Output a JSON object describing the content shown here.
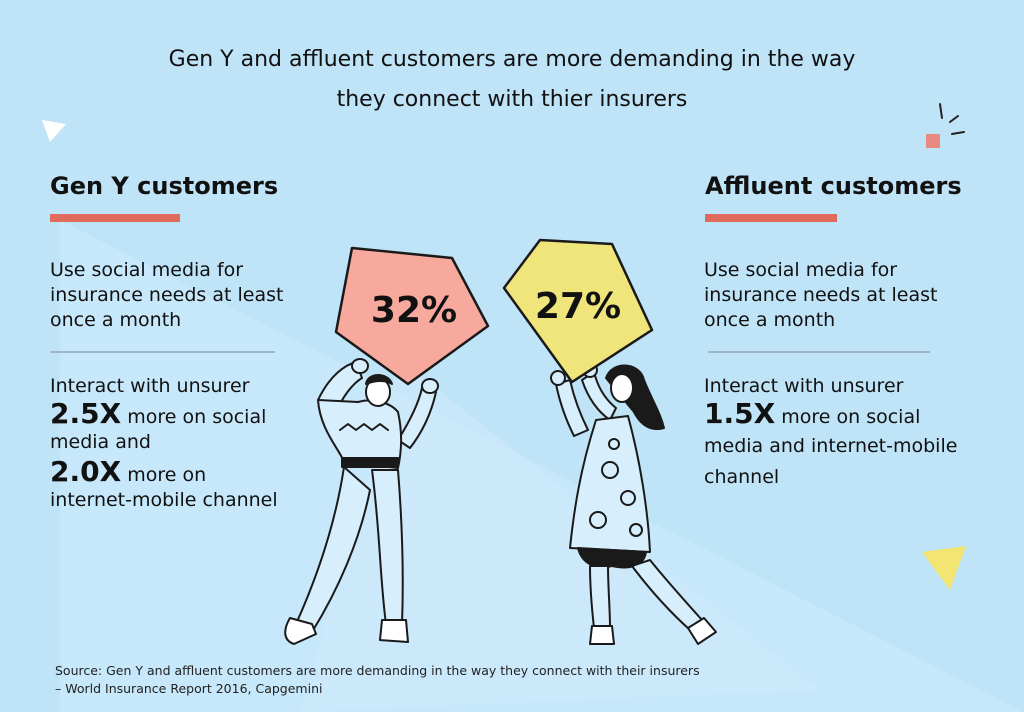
{
  "title": {
    "line1": "Gen Y and affluent customers are more demanding in the way",
    "line2": "they connect with thier insurers"
  },
  "left": {
    "heading": "Gen Y customers",
    "stat1": [
      "Use social media for",
      "insurance needs at least",
      "once a month"
    ],
    "stat2_intro": "Interact with unsurer",
    "multiplier1": "2.5X",
    "multiplier1_text": "more on social",
    "multiplier1_text2": "media and",
    "multiplier2": "2.0X",
    "multiplier2_text": "more on",
    "multiplier2_text2": "internet-mobile channel"
  },
  "right": {
    "heading": "Affluent customers",
    "stat1": [
      "Use social media for",
      "insurance needs at least",
      "once a month"
    ],
    "stat2_intro": "Interact with unsurer",
    "multiplier1": "1.5X",
    "multiplier1_text": "more on social",
    "multiplier1_text2": "media and internet-mobile",
    "multiplier1_text3": "channel"
  },
  "signs": {
    "left_value": "32%",
    "right_value": "27%"
  },
  "source": {
    "line1": "Source: Gen Y and affluent customers are more demanding in the way they connect with their insurers",
    "line2": "– World Insurance Report 2016, Capgemini"
  },
  "colors": {
    "background": "#bfe3f7",
    "accent": "#e06b5d",
    "left_sign": "#f7a99e",
    "right_sign": "#efe57a",
    "yellow_triangle": "#f2e571"
  }
}
